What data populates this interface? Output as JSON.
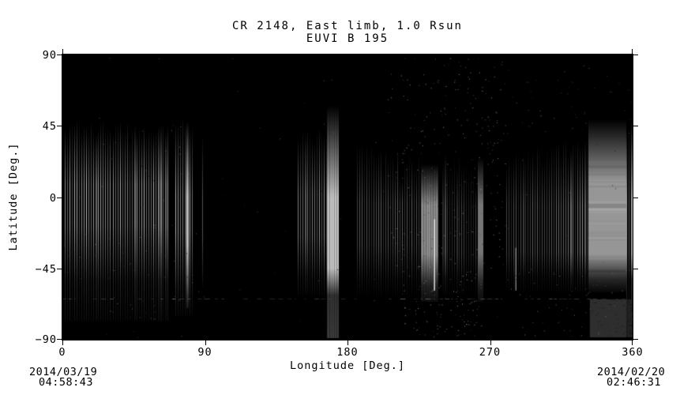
{
  "colors": {
    "page_background": "#ffffff",
    "plot_background": "#000000",
    "text": "#000000",
    "frame": "#000000"
  },
  "chart_data": {
    "type": "heatmap",
    "title": "CR 2148, East limb, 1.0 Rsun",
    "subtitle": "EUVI B 195",
    "xlabel": "Longitude [Deg.]",
    "ylabel": "Latitude [Deg.]",
    "xlim": [
      0,
      360
    ],
    "ylim": [
      -90,
      90
    ],
    "xticks": [
      0,
      90,
      180,
      270,
      360
    ],
    "xtick_labels": [
      "0",
      "90",
      "180",
      "270",
      "360"
    ],
    "yticks": [
      90,
      45,
      0,
      -45,
      -90
    ],
    "ytick_labels": [
      "90",
      "45",
      "0",
      "−45",
      "−90"
    ],
    "start_date": {
      "date": "2014/03/19",
      "time": "04:58:43"
    },
    "end_date": {
      "date": "2014/02/20",
      "time": "02:46:31"
    },
    "colormap": "grayscale",
    "grid": false,
    "legend": false,
    "bands": [
      {
        "id": "A1",
        "lon": [
          1.5,
          30.3
        ],
        "top": 44,
        "peak_top": 8,
        "peak_bottom": -18,
        "bottom": -53,
        "tail": -78,
        "tail_alpha": 0.09,
        "gray": 150,
        "texture": "stripes"
      },
      {
        "id": "A1b",
        "lon": [
          31.8,
          67.2
        ],
        "top": 44,
        "peak_top": 8,
        "peak_bottom": -18,
        "bottom": -53,
        "tail": -78,
        "tail_alpha": 0.09,
        "gray": 146,
        "texture": "stripes"
      },
      {
        "id": "A2",
        "lon": [
          71.3,
          82.8
        ],
        "top": 48,
        "peak_top": 2,
        "peak_bottom": -22,
        "bottom": -58,
        "tail": -75,
        "tail_alpha": 0.07,
        "gray": 150,
        "texture": "stripes"
      },
      {
        "id": "A2-bright",
        "lon": [
          78.2,
          79.6
        ],
        "top": 48,
        "peak_top": 0,
        "peak_bottom": -30,
        "bottom": -62,
        "tail": -70,
        "tail_alpha": 0.1,
        "gray": 185,
        "texture": "smooth"
      },
      {
        "id": "lone-89",
        "lon": [
          88.4,
          88.9
        ],
        "top": 40,
        "peak_top": 0,
        "peak_bottom": -25,
        "bottom": -52,
        "tail": -58,
        "tail_alpha": 0,
        "gray": 80,
        "texture": "smooth"
      },
      {
        "id": "C",
        "lon": [
          148.6,
          167.0
        ],
        "top": 40,
        "peak_top": 2,
        "peak_bottom": -25,
        "bottom": -50,
        "tail": -62,
        "tail_alpha": 0.07,
        "gray": 125,
        "texture": "stripes"
      },
      {
        "id": "D",
        "lon": [
          167.0,
          174.5
        ],
        "top": 58,
        "peak_top": 0,
        "peak_bottom": -45,
        "bottom": -62,
        "tail": -89,
        "tail_alpha": 0.3,
        "gray": 195,
        "texture": "smooth-striped"
      },
      {
        "id": "F",
        "lon": [
          186.0,
          225.9
        ],
        "top": [
          34,
          22
        ],
        "peak_top": -4,
        "peak_bottom": -30,
        "bottom": -52,
        "tail": -62,
        "tail_alpha": 0.05,
        "gray": 78,
        "texture": "stripes"
      },
      {
        "id": "G",
        "lon": [
          226.4,
          237.6
        ],
        "top": 21,
        "peak_top": -5,
        "peak_bottom": -36,
        "bottom": -56,
        "tail": -66,
        "tail_alpha": 0.1,
        "gray": 140,
        "texture": "smooth-striped"
      },
      {
        "id": "H",
        "lon": [
          239.7,
          262.2
        ],
        "top": [
          26,
          21
        ],
        "peak_top": -8,
        "peak_bottom": -35,
        "bottom": -52,
        "tail": -62,
        "tail_alpha": 0.05,
        "gray": 62,
        "texture": "stripes"
      },
      {
        "id": "H2",
        "lon": [
          262.2,
          265.7
        ],
        "top": 25,
        "peak_top": -5,
        "peak_bottom": -35,
        "bottom": -56,
        "tail": -66,
        "tail_alpha": 0.1,
        "gray": 118,
        "texture": "smooth"
      },
      {
        "id": "J",
        "lon": [
          280.2,
          331.6
        ],
        "top": [
          24,
          35
        ],
        "peak_top": -5,
        "peak_bottom": -35,
        "bottom": -50,
        "tail": -60,
        "tail_alpha": 0.05,
        "gray": [
          60,
          118
        ],
        "texture": "stripes"
      },
      {
        "id": "K",
        "lon": [
          332.1,
          356.2
        ],
        "top": 49,
        "peak_top": 10,
        "peak_bottom": -36,
        "bottom": -52,
        "tail": -60,
        "tail_alpha": 0.04,
        "gray": 150,
        "texture": "smooth-mottled"
      },
      {
        "id": "L",
        "lon": [
          356.2,
          360
        ],
        "top": 46,
        "peak_top": 0,
        "peak_bottom": -36,
        "bottom": -52,
        "tail": -88,
        "tail_alpha": 0.1,
        "gray": 125,
        "texture": "stripes"
      }
    ],
    "patches": [
      {
        "lon": [
          333,
          356.2
        ],
        "lat": [
          -64.5,
          -88.5
        ],
        "gray": 46
      },
      {
        "lon": [
          356.6,
          360
        ],
        "lat": [
          -64.5,
          -88.5
        ],
        "gray": 34
      }
    ],
    "lines": [
      {
        "lon": 234.9,
        "lat": [
          -14,
          -59
        ],
        "gray": 228,
        "width": 1.5
      },
      {
        "lon": 286.3,
        "lat": [
          -32,
          -59
        ],
        "gray": 180,
        "width": 1
      }
    ],
    "speckle_fields": [
      {
        "lon": [
          205,
          280
        ],
        "lat": [
          -45,
          88
        ],
        "count": 270,
        "gray": [
          40,
          150
        ]
      },
      {
        "lon": [
          1,
          85
        ],
        "lat": [
          -88,
          46
        ],
        "count": 80,
        "gray": [
          30,
          110
        ]
      },
      {
        "lon": [
          215,
          265
        ],
        "lat": [
          -88,
          -46
        ],
        "count": 110,
        "gray": [
          40,
          160
        ]
      },
      {
        "lon": [
          280,
          360
        ],
        "lat": [
          -88,
          -45
        ],
        "count": 60,
        "gray": [
          35,
          120
        ]
      },
      {
        "lon": [
          280,
          360
        ],
        "lat": [
          40,
          88
        ],
        "count": 40,
        "gray": [
          30,
          100
        ]
      },
      {
        "lon": [
          0,
          360
        ],
        "lat": [
          -90,
          90
        ],
        "count": 90,
        "gray": [
          25,
          90
        ]
      }
    ],
    "hline": {
      "lat": -64.3,
      "gray": 95
    }
  }
}
